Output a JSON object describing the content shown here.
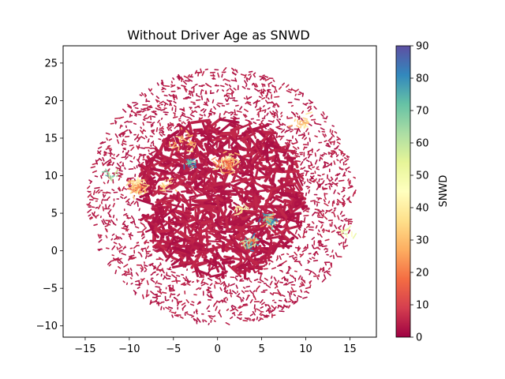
{
  "chart_data": {
    "type": "scatter",
    "title": "Without Driver Age as SNWD",
    "xlabel": "",
    "ylabel": "",
    "xlim": [
      -17.5,
      18
    ],
    "ylim": [
      -11.5,
      27.3
    ],
    "xticks": [
      -15,
      -10,
      -5,
      0,
      5,
      10,
      15
    ],
    "yticks": [
      -10,
      -5,
      0,
      5,
      10,
      15,
      20,
      25
    ],
    "grid": false,
    "colorbar": {
      "label": "SNWD",
      "min": 0,
      "max": 90,
      "ticks": [
        0,
        10,
        20,
        30,
        40,
        50,
        60,
        70,
        80,
        90
      ],
      "colormap": "Spectral",
      "stops": [
        "#9e0142",
        "#d53e4f",
        "#f46d43",
        "#fdae61",
        "#fee08b",
        "#ffffbf",
        "#e6f598",
        "#abdda4",
        "#66c2a5",
        "#3288bd",
        "#5e4fa2"
      ]
    },
    "point_cloud": {
      "center": [
        0.5,
        7.2
      ],
      "radius_x": 15.5,
      "radius_y": 17.5,
      "base_value": 2,
      "point_count": 2600
    },
    "clusters": [
      {
        "x": 1.0,
        "y": 11.6,
        "spread": 1.0,
        "values": [
          18,
          32,
          45
        ],
        "count": 70
      },
      {
        "x": -9.0,
        "y": 8.5,
        "spread": 0.9,
        "values": [
          20,
          30,
          40
        ],
        "count": 60
      },
      {
        "x": -4.0,
        "y": 14.5,
        "spread": 1.2,
        "values": [
          28,
          35
        ],
        "count": 25
      },
      {
        "x": 6.0,
        "y": 4.0,
        "spread": 0.7,
        "values": [
          25,
          70,
          80
        ],
        "count": 45
      },
      {
        "x": 3.7,
        "y": 1.0,
        "spread": 0.7,
        "values": [
          60,
          80,
          20
        ],
        "count": 40
      },
      {
        "x": -3.0,
        "y": 11.5,
        "spread": 0.6,
        "values": [
          70,
          85
        ],
        "count": 20
      },
      {
        "x": 9.5,
        "y": 17.0,
        "spread": 1.0,
        "values": [
          30,
          40
        ],
        "count": 20
      },
      {
        "x": -12.0,
        "y": 10.0,
        "spread": 0.8,
        "values": [
          70,
          60
        ],
        "count": 12
      },
      {
        "x": 14.5,
        "y": 2.5,
        "spread": 0.8,
        "values": [
          45,
          55
        ],
        "count": 10
      },
      {
        "x": 2.5,
        "y": 5.5,
        "spread": 0.6,
        "values": [
          35,
          45
        ],
        "count": 15
      },
      {
        "x": -6.0,
        "y": 8.5,
        "spread": 0.8,
        "values": [
          30,
          40
        ],
        "count": 15
      }
    ]
  }
}
